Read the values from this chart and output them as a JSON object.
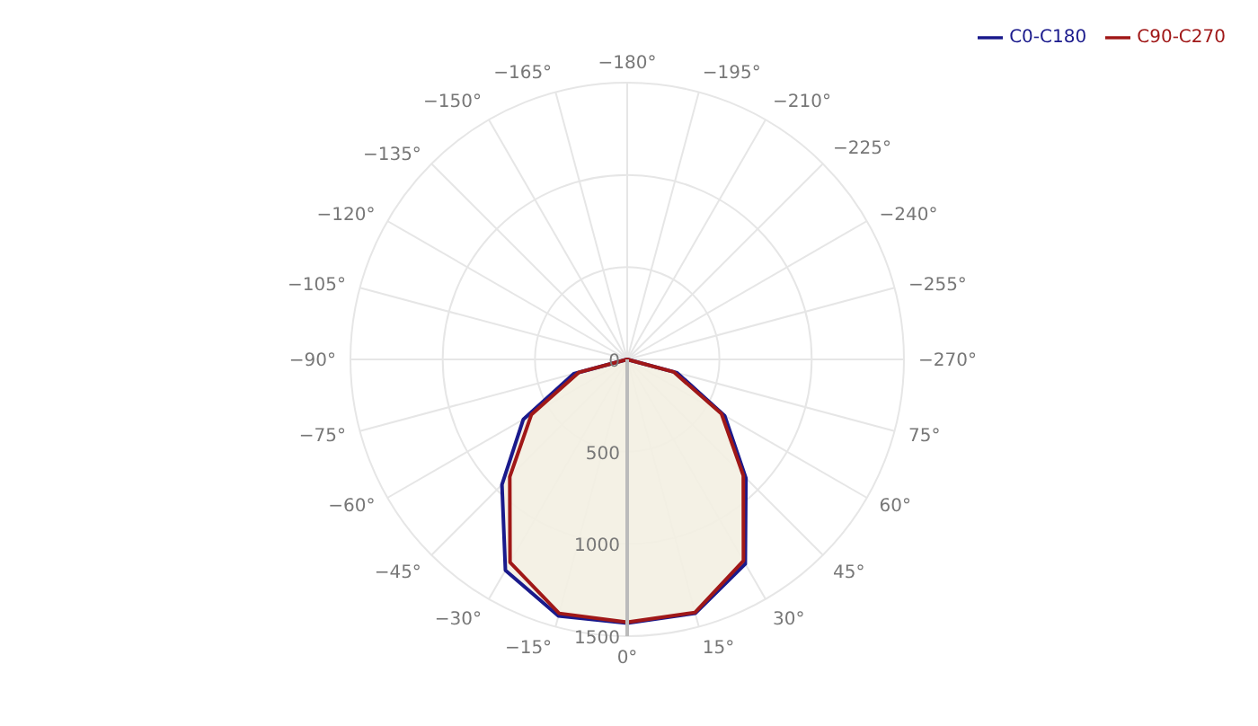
{
  "chart_data": {
    "type": "radar",
    "categories": [
      "−180°",
      "−195°",
      "−210°",
      "−225°",
      "−240°",
      "−255°",
      "−270°",
      "75°",
      "60°",
      "45°",
      "30°",
      "15°",
      "0°",
      "−15°",
      "−30°",
      "−45°",
      "−60°",
      "−75°",
      "−90°",
      "−105°",
      "−120°",
      "−135°",
      "−150°",
      "−165°"
    ],
    "series": [
      {
        "name": "C0-C180",
        "color": "#1a1a8c",
        "values": [
          0,
          0,
          0,
          0,
          0,
          0,
          0,
          280,
          610,
          910,
          1280,
          1425,
          1430,
          1440,
          1320,
          960,
          650,
          300,
          0,
          0,
          0,
          0,
          0,
          0
        ]
      },
      {
        "name": "C90-C270",
        "color": "#a01818",
        "values": [
          0,
          0,
          0,
          0,
          0,
          0,
          0,
          260,
          590,
          890,
          1260,
          1420,
          1425,
          1425,
          1270,
          900,
          600,
          270,
          0,
          0,
          0,
          0,
          0,
          0
        ]
      }
    ],
    "ylim": [
      0,
      1500
    ],
    "yticks": [
      0,
      500,
      1000,
      1500
    ],
    "grid": true,
    "legend": "top right",
    "marker": "none"
  }
}
